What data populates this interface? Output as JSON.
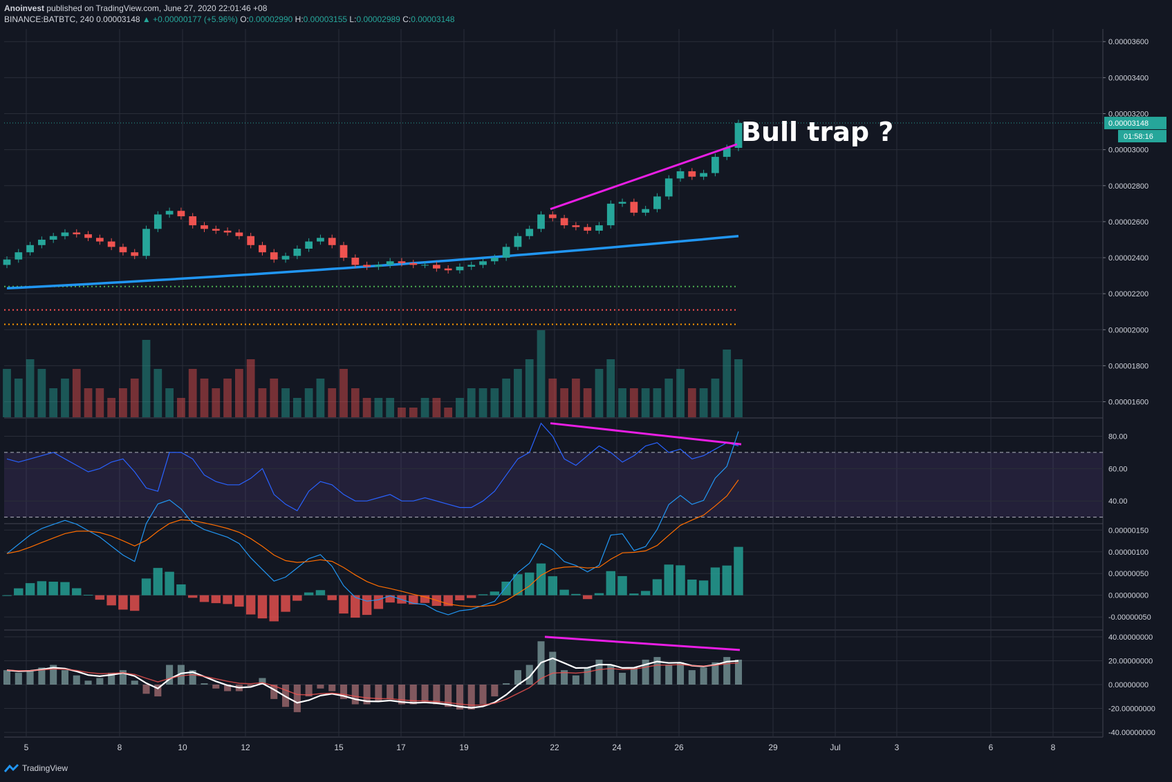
{
  "header": {
    "author": "Anoinvest",
    "published": "published on TradingView.com, June 27, 2020 22:01:46 +08",
    "symbol": "BINANCE:BATBTC, 240",
    "last": "0.00003148",
    "change": "▲ +0.00000177 (+5.96%)",
    "o_label": "O:",
    "o_val": "0.00002990",
    "h_label": "H:",
    "h_val": "0.00003155",
    "l_label": "L:",
    "l_val": "0.00002989",
    "c_label": "C:",
    "c_val": "0.00003148"
  },
  "price_badge": "0.00003148",
  "countdown_badge": "01:58:16",
  "annotation": "Bull trap ?",
  "footer_logo": "TradingView",
  "colors": {
    "bg": "#131722",
    "grid": "#2a2e39",
    "up": "#26a69a",
    "down": "#ef5350",
    "ma": "#2196f3",
    "trend": "#e91ee4",
    "rsi": "#2962ff",
    "rsi_band": "#7e57c2"
  },
  "chart_data": [
    {
      "type": "candlestick",
      "panel": "price",
      "x_tick_labels": [
        "5",
        "8",
        "10",
        "12",
        "15",
        "17",
        "19",
        "22",
        "24",
        "26",
        "29",
        "Jul",
        "3",
        "6",
        "8"
      ],
      "y_tick_labels": [
        "0.00003600",
        "0.00003400",
        "0.00003200",
        "0.00003000",
        "0.00002800",
        "0.00002600",
        "0.00002400",
        "0.00002200",
        "0.00002000",
        "0.00001800",
        "0.00001600"
      ],
      "ylim": [
        1.51e-05,
        3.67e-05
      ],
      "close_series": [
        2.39e-05,
        2.43e-05,
        2.47e-05,
        2.5e-05,
        2.52e-05,
        2.54e-05,
        2.53e-05,
        2.51e-05,
        2.49e-05,
        2.46e-05,
        2.43e-05,
        2.41e-05,
        2.56e-05,
        2.64e-05,
        2.66e-05,
        2.63e-05,
        2.58e-05,
        2.56e-05,
        2.55e-05,
        2.54e-05,
        2.52e-05,
        2.47e-05,
        2.43e-05,
        2.39e-05,
        2.41e-05,
        2.45e-05,
        2.49e-05,
        2.51e-05,
        2.47e-05,
        2.4e-05,
        2.36e-05,
        2.35e-05,
        2.36e-05,
        2.38e-05,
        2.37e-05,
        2.36e-05,
        2.36e-05,
        2.34e-05,
        2.33e-05,
        2.35e-05,
        2.36e-05,
        2.38e-05,
        2.4e-05,
        2.46e-05,
        2.52e-05,
        2.56e-05,
        2.64e-05,
        2.62e-05,
        2.58e-05,
        2.57e-05,
        2.55e-05,
        2.58e-05,
        2.7e-05,
        2.71e-05,
        2.65e-05,
        2.67e-05,
        2.74e-05,
        2.84e-05,
        2.88e-05,
        2.85e-05,
        2.87e-05,
        2.96e-05,
        3.01e-05,
        3.148e-05
      ],
      "ma_last": 2.52e-05,
      "horizontal_levels": [
        {
          "value": 2.24e-05,
          "color": "#4caf50"
        },
        {
          "value": 2.11e-05,
          "color": "#ff5252"
        },
        {
          "value": 2.03e-05,
          "color": "#ff9800"
        }
      ],
      "volume_relative": [
        0.5,
        0.4,
        0.6,
        0.5,
        0.3,
        0.4,
        0.5,
        0.3,
        0.3,
        0.2,
        0.3,
        0.4,
        0.8,
        0.5,
        0.3,
        0.2,
        0.5,
        0.4,
        0.3,
        0.4,
        0.5,
        0.6,
        0.3,
        0.4,
        0.3,
        0.2,
        0.3,
        0.4,
        0.3,
        0.5,
        0.3,
        0.2,
        0.2,
        0.2,
        0.1,
        0.1,
        0.2,
        0.2,
        0.1,
        0.2,
        0.3,
        0.3,
        0.3,
        0.4,
        0.5,
        0.6,
        0.9,
        0.4,
        0.3,
        0.4,
        0.3,
        0.5,
        0.6,
        0.3,
        0.3,
        0.3,
        0.3,
        0.4,
        0.5,
        0.3,
        0.3,
        0.4,
        0.7,
        0.6
      ]
    },
    {
      "type": "line",
      "panel": "rsi",
      "y_tick_labels": [
        "80.00",
        "60.00",
        "40.00"
      ],
      "ylim": [
        26,
        90
      ],
      "band": [
        30,
        70
      ],
      "values": [
        66,
        64,
        66,
        68,
        70,
        66,
        62,
        58,
        60,
        64,
        66,
        58,
        48,
        46,
        70,
        70,
        66,
        56,
        52,
        50,
        50,
        54,
        60,
        44,
        38,
        34,
        46,
        52,
        50,
        44,
        40,
        40,
        42,
        44,
        40,
        40,
        42,
        40,
        38,
        36,
        36,
        40,
        46,
        56,
        66,
        70,
        88,
        80,
        66,
        62,
        68,
        74,
        70,
        64,
        68,
        74,
        76,
        70,
        72,
        66,
        68,
        72,
        76,
        74
      ]
    },
    {
      "type": "line",
      "panel": "macd",
      "y_tick_labels": [
        "0.00000150",
        "0.00000100",
        "0.00000050",
        "0.00000000",
        "-0.00000050"
      ],
      "ylim": [
        -8e-07,
        1.6e-06
      ]
    },
    {
      "type": "line",
      "panel": "oscillator",
      "y_tick_labels": [
        "40.00000000",
        "20.00000000",
        "0.00000000",
        "-20.00000000",
        "-40.00000000"
      ],
      "ylim": [
        -44,
        44
      ]
    }
  ]
}
